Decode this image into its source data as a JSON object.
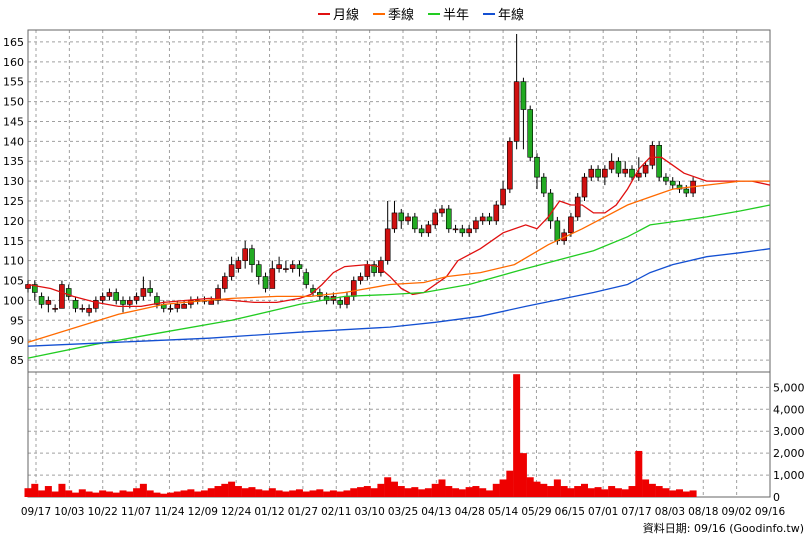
{
  "chart_data": {
    "type": "line",
    "legend": [
      "月線",
      "季線",
      "半年",
      "年線"
    ],
    "legend_placement": "top-center",
    "colors": {
      "ma_month": "#e01010",
      "ma_season": "#ff6a00",
      "ma_half": "#22cc22",
      "ma_year": "#1450d2",
      "candle_up": "#d01010",
      "candle_down": "#22aa22",
      "volume": "#ee0000",
      "grid": "#a0a0a0"
    },
    "price_axis": {
      "ylim": [
        82,
        168
      ],
      "ticks": [
        85,
        90,
        95,
        100,
        105,
        110,
        115,
        120,
        125,
        130,
        135,
        140,
        145,
        150,
        155,
        160,
        165
      ],
      "side": "left"
    },
    "volume_axis": {
      "ylim": [
        0,
        5700
      ],
      "ticks": [
        0,
        1000,
        2000,
        3000,
        4000,
        5000
      ],
      "tick_labels": [
        "0",
        "1,000",
        "2,000",
        "3,000",
        "4,000",
        "5,000"
      ],
      "side": "right"
    },
    "x_axis": {
      "labels": [
        "09/17",
        "10/03",
        "10/22",
        "11/07",
        "11/24",
        "12/09",
        "12/24",
        "01/12",
        "01/27",
        "02/11",
        "03/10",
        "03/25",
        "04/13",
        "04/28",
        "05/14",
        "05/29",
        "06/15",
        "07/01",
        "07/17",
        "08/03",
        "08/18",
        "09/02",
        "09/16"
      ],
      "grid": true
    },
    "series": [
      {
        "name": "月線",
        "points": [
          [
            0,
            104
          ],
          [
            10,
            103
          ],
          [
            20,
            101
          ],
          [
            30,
            99.5
          ],
          [
            40,
            98.5
          ],
          [
            50,
            98.5
          ],
          [
            60,
            99.5
          ],
          [
            70,
            100
          ],
          [
            80,
            100.5
          ],
          [
            90,
            100
          ],
          [
            100,
            99.5
          ],
          [
            110,
            99.5
          ],
          [
            120,
            100.5
          ],
          [
            125,
            101.5
          ],
          [
            130,
            104
          ],
          [
            135,
            107
          ],
          [
            140,
            108.5
          ],
          [
            150,
            109
          ],
          [
            155,
            108.5
          ],
          [
            160,
            106
          ],
          [
            165,
            103
          ],
          [
            170,
            101.5
          ],
          [
            175,
            102
          ],
          [
            180,
            104
          ],
          [
            185,
            106
          ],
          [
            190,
            110
          ],
          [
            200,
            113
          ],
          [
            210,
            117
          ],
          [
            220,
            119
          ],
          [
            225,
            118
          ],
          [
            230,
            121
          ],
          [
            235,
            125
          ],
          [
            240,
            124
          ],
          [
            245,
            124
          ],
          [
            250,
            122
          ],
          [
            255,
            122
          ],
          [
            260,
            124
          ],
          [
            265,
            128
          ],
          [
            270,
            133
          ],
          [
            275,
            136
          ],
          [
            280,
            136
          ],
          [
            285,
            134
          ],
          [
            290,
            132
          ],
          [
            300,
            130
          ],
          [
            310,
            130
          ],
          [
            320,
            130
          ],
          [
            328,
            129
          ]
        ]
      },
      {
        "name": "季線",
        "points": [
          [
            0,
            89.5
          ],
          [
            20,
            93
          ],
          [
            40,
            96.5
          ],
          [
            60,
            99
          ],
          [
            75,
            99.8
          ],
          [
            90,
            100.5
          ],
          [
            110,
            101
          ],
          [
            125,
            101
          ],
          [
            140,
            102
          ],
          [
            160,
            104
          ],
          [
            175,
            104.5
          ],
          [
            185,
            106
          ],
          [
            200,
            107
          ],
          [
            215,
            109
          ],
          [
            230,
            114
          ],
          [
            245,
            118
          ],
          [
            255,
            121
          ],
          [
            265,
            124
          ],
          [
            275,
            126
          ],
          [
            285,
            128
          ],
          [
            300,
            129
          ],
          [
            315,
            130
          ],
          [
            328,
            130
          ]
        ]
      },
      {
        "name": "半年",
        "points": [
          [
            0,
            85.5
          ],
          [
            30,
            89
          ],
          [
            60,
            92
          ],
          [
            90,
            95
          ],
          [
            120,
            99
          ],
          [
            140,
            101
          ],
          [
            160,
            101.5
          ],
          [
            175,
            102
          ],
          [
            195,
            104
          ],
          [
            220,
            108
          ],
          [
            250,
            112.5
          ],
          [
            265,
            116
          ],
          [
            275,
            119
          ],
          [
            288,
            120
          ],
          [
            300,
            121
          ],
          [
            315,
            122.5
          ],
          [
            328,
            124
          ]
        ]
      },
      {
        "name": "年線",
        "points": [
          [
            0,
            88.5
          ],
          [
            40,
            89.5
          ],
          [
            80,
            90.5
          ],
          [
            120,
            92
          ],
          [
            160,
            93.3
          ],
          [
            180,
            94.5
          ],
          [
            200,
            96
          ],
          [
            220,
            98.5
          ],
          [
            250,
            102
          ],
          [
            265,
            104
          ],
          [
            275,
            107
          ],
          [
            285,
            109
          ],
          [
            300,
            111
          ],
          [
            315,
            112
          ],
          [
            328,
            113
          ]
        ]
      }
    ],
    "candles": [
      [
        0,
        103,
        104,
        105,
        102
      ],
      [
        3,
        104,
        102,
        105,
        100
      ],
      [
        6,
        101,
        99,
        102,
        98
      ],
      [
        9,
        99,
        100,
        101,
        97
      ],
      [
        12,
        98,
        98,
        99,
        97
      ],
      [
        15,
        98,
        104,
        105,
        98
      ],
      [
        18,
        103,
        101,
        104,
        100
      ],
      [
        21,
        100,
        98,
        101,
        97
      ],
      [
        24,
        98,
        98,
        99,
        97
      ],
      [
        27,
        97,
        98,
        99,
        96
      ],
      [
        30,
        98,
        100,
        101,
        97
      ],
      [
        33,
        100,
        101,
        102,
        99
      ],
      [
        36,
        101,
        102,
        103,
        100
      ],
      [
        39,
        102,
        100,
        103,
        99
      ],
      [
        42,
        100,
        99,
        101,
        97
      ],
      [
        45,
        99,
        100,
        101,
        98
      ],
      [
        48,
        100,
        101,
        102,
        99
      ],
      [
        51,
        101,
        103,
        106,
        100
      ],
      [
        54,
        103,
        102,
        105,
        101
      ],
      [
        57,
        101,
        99,
        102,
        98
      ],
      [
        60,
        99,
        98,
        100,
        97
      ],
      [
        63,
        98,
        98,
        99,
        97
      ],
      [
        66,
        98,
        99,
        100,
        97
      ],
      [
        69,
        98,
        99,
        100,
        98
      ],
      [
        72,
        99,
        100,
        101,
        98
      ],
      [
        75,
        100,
        100,
        101,
        99
      ],
      [
        78,
        100,
        100,
        101,
        99
      ],
      [
        81,
        99,
        100,
        101,
        99
      ],
      [
        84,
        100,
        103,
        104,
        99
      ],
      [
        87,
        103,
        106,
        107,
        102
      ],
      [
        90,
        106,
        109,
        111,
        105
      ],
      [
        93,
        108,
        110,
        111,
        107
      ],
      [
        96,
        110,
        113,
        115,
        108
      ],
      [
        99,
        113,
        109,
        114,
        107
      ],
      [
        102,
        109,
        106,
        110,
        104
      ],
      [
        105,
        106,
        103,
        107,
        102
      ],
      [
        108,
        103,
        108,
        110,
        103
      ],
      [
        111,
        108,
        109,
        111,
        107
      ],
      [
        114,
        108,
        108,
        110,
        107
      ],
      [
        117,
        108,
        109,
        110,
        107
      ],
      [
        120,
        109,
        108,
        110,
        106
      ],
      [
        123,
        107,
        104,
        108,
        103
      ],
      [
        126,
        103,
        102,
        104,
        101
      ],
      [
        129,
        102,
        101,
        103,
        100
      ],
      [
        132,
        101,
        100,
        102,
        99
      ],
      [
        135,
        100,
        101,
        102,
        99
      ],
      [
        138,
        100,
        99,
        101,
        98
      ],
      [
        141,
        99,
        101,
        102,
        98
      ],
      [
        144,
        101,
        105,
        106,
        100
      ],
      [
        147,
        105,
        106,
        107,
        104
      ],
      [
        150,
        106,
        109,
        110,
        105
      ],
      [
        153,
        109,
        107,
        110,
        106
      ],
      [
        156,
        107,
        110,
        111,
        106
      ],
      [
        159,
        110,
        118,
        125,
        109
      ],
      [
        162,
        118,
        122,
        125,
        117
      ],
      [
        165,
        122,
        120,
        123,
        118
      ],
      [
        168,
        120,
        121,
        122,
        119
      ],
      [
        171,
        121,
        118,
        122,
        117
      ],
      [
        174,
        118,
        117,
        119,
        116
      ],
      [
        177,
        117,
        119,
        120,
        116
      ],
      [
        180,
        119,
        122,
        123,
        118
      ],
      [
        183,
        122,
        123,
        124,
        121
      ],
      [
        186,
        123,
        118,
        124,
        117
      ],
      [
        189,
        118,
        118,
        119,
        117
      ],
      [
        192,
        118,
        117,
        119,
        116
      ],
      [
        195,
        117,
        118,
        119,
        116
      ],
      [
        198,
        118,
        120,
        121,
        117
      ],
      [
        201,
        120,
        121,
        122,
        119
      ],
      [
        204,
        121,
        120,
        122,
        119
      ],
      [
        207,
        120,
        124,
        125,
        119
      ],
      [
        210,
        124,
        128,
        130,
        123
      ],
      [
        213,
        128,
        140,
        141,
        127
      ],
      [
        216,
        140,
        155,
        167,
        138
      ],
      [
        219,
        155,
        148,
        156,
        138
      ],
      [
        222,
        148,
        136,
        149,
        135
      ],
      [
        225,
        136,
        131,
        137,
        128
      ],
      [
        228,
        131,
        127,
        132,
        126
      ],
      [
        231,
        127,
        120,
        128,
        118
      ],
      [
        234,
        120,
        115,
        121,
        114
      ],
      [
        237,
        115,
        117,
        118,
        114
      ],
      [
        240,
        117,
        121,
        122,
        116
      ],
      [
        243,
        121,
        126,
        127,
        120
      ],
      [
        246,
        126,
        131,
        132,
        125
      ],
      [
        249,
        131,
        133,
        134,
        130
      ],
      [
        252,
        133,
        131,
        134,
        130
      ],
      [
        255,
        131,
        133,
        134,
        129
      ],
      [
        258,
        133,
        135,
        137,
        132
      ],
      [
        261,
        135,
        132,
        136,
        131
      ],
      [
        264,
        132,
        133,
        135,
        131
      ],
      [
        267,
        133,
        131,
        134,
        130
      ],
      [
        270,
        131,
        132,
        136,
        130
      ],
      [
        273,
        132,
        134,
        135,
        131
      ],
      [
        276,
        134,
        139,
        140,
        133
      ],
      [
        279,
        139,
        131,
        140,
        130
      ],
      [
        282,
        131,
        130,
        132,
        129
      ],
      [
        285,
        130,
        129,
        131,
        128
      ],
      [
        288,
        129,
        128,
        130,
        127
      ],
      [
        291,
        128,
        127,
        129,
        126
      ],
      [
        294,
        127,
        130,
        131,
        126
      ]
    ],
    "volumes": [
      [
        0,
        400
      ],
      [
        3,
        600
      ],
      [
        6,
        300
      ],
      [
        9,
        500
      ],
      [
        12,
        250
      ],
      [
        15,
        600
      ],
      [
        18,
        300
      ],
      [
        21,
        200
      ],
      [
        24,
        350
      ],
      [
        27,
        250
      ],
      [
        30,
        200
      ],
      [
        33,
        300
      ],
      [
        36,
        250
      ],
      [
        39,
        200
      ],
      [
        42,
        300
      ],
      [
        45,
        250
      ],
      [
        48,
        400
      ],
      [
        51,
        600
      ],
      [
        54,
        300
      ],
      [
        57,
        200
      ],
      [
        60,
        150
      ],
      [
        63,
        200
      ],
      [
        66,
        250
      ],
      [
        69,
        300
      ],
      [
        72,
        350
      ],
      [
        75,
        250
      ],
      [
        78,
        300
      ],
      [
        81,
        400
      ],
      [
        84,
        500
      ],
      [
        87,
        600
      ],
      [
        90,
        700
      ],
      [
        93,
        500
      ],
      [
        96,
        400
      ],
      [
        99,
        450
      ],
      [
        102,
        350
      ],
      [
        105,
        300
      ],
      [
        108,
        400
      ],
      [
        111,
        300
      ],
      [
        114,
        250
      ],
      [
        117,
        300
      ],
      [
        120,
        350
      ],
      [
        123,
        250
      ],
      [
        126,
        300
      ],
      [
        129,
        350
      ],
      [
        132,
        250
      ],
      [
        135,
        300
      ],
      [
        138,
        250
      ],
      [
        141,
        300
      ],
      [
        144,
        400
      ],
      [
        147,
        450
      ],
      [
        150,
        500
      ],
      [
        153,
        400
      ],
      [
        156,
        600
      ],
      [
        159,
        900
      ],
      [
        162,
        700
      ],
      [
        165,
        500
      ],
      [
        168,
        400
      ],
      [
        171,
        450
      ],
      [
        174,
        350
      ],
      [
        177,
        400
      ],
      [
        180,
        600
      ],
      [
        183,
        800
      ],
      [
        186,
        500
      ],
      [
        189,
        400
      ],
      [
        192,
        350
      ],
      [
        195,
        450
      ],
      [
        198,
        500
      ],
      [
        201,
        400
      ],
      [
        204,
        300
      ],
      [
        207,
        600
      ],
      [
        210,
        800
      ],
      [
        213,
        1200
      ],
      [
        216,
        5600
      ],
      [
        219,
        2000
      ],
      [
        222,
        900
      ],
      [
        225,
        700
      ],
      [
        228,
        600
      ],
      [
        231,
        500
      ],
      [
        234,
        800
      ],
      [
        237,
        500
      ],
      [
        240,
        400
      ],
      [
        243,
        500
      ],
      [
        246,
        600
      ],
      [
        249,
        400
      ],
      [
        252,
        450
      ],
      [
        255,
        350
      ],
      [
        258,
        500
      ],
      [
        261,
        400
      ],
      [
        264,
        350
      ],
      [
        267,
        500
      ],
      [
        270,
        2100
      ],
      [
        273,
        800
      ],
      [
        276,
        600
      ],
      [
        279,
        500
      ],
      [
        282,
        400
      ],
      [
        285,
        300
      ],
      [
        288,
        350
      ],
      [
        291,
        250
      ],
      [
        294,
        300
      ]
    ],
    "footer_note": "資料日期: 09/16  (Goodinfo.tw)"
  }
}
